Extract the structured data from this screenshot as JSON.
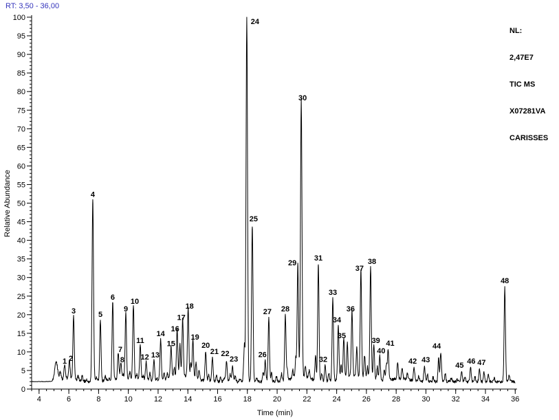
{
  "header": {
    "rt_range": "RT: 3,50 - 36,00",
    "color": "#3333bb"
  },
  "legend": {
    "lines": [
      "NL:",
      "2,47E7",
      "TIC MS",
      "X07281VA",
      "CARISSES"
    ]
  },
  "chart_data": {
    "type": "line",
    "title": "",
    "xlabel": "Time (min)",
    "ylabel": "Relative Abundance",
    "xlim": [
      3.5,
      36.0
    ],
    "ylim": [
      0,
      100
    ],
    "grid": false,
    "trace_color": "#000000",
    "axis_color": "#000000",
    "x_ticks": [
      4,
      6,
      8,
      10,
      12,
      14,
      16,
      18,
      20,
      22,
      24,
      26,
      28,
      30,
      32,
      34,
      36
    ],
    "x_minor_step": 0.5,
    "y_ticks": [
      0,
      5,
      10,
      15,
      20,
      25,
      30,
      35,
      40,
      45,
      50,
      55,
      60,
      65,
      70,
      75,
      80,
      85,
      90,
      95,
      100
    ],
    "y_minor_step": 1,
    "baseline": 2.0,
    "peaks": [
      {
        "n": 1,
        "t": 5.72,
        "a": 5.7
      },
      {
        "n": 2,
        "t": 6.04,
        "a": 6.5,
        "dx": 2
      },
      {
        "n": 3,
        "t": 6.32,
        "a": 19.2
      },
      {
        "n": 4,
        "t": 7.61,
        "a": 50.6,
        "w": 0.05
      },
      {
        "n": 5,
        "t": 8.12,
        "a": 18.3
      },
      {
        "n": 6,
        "t": 8.95,
        "a": 22.9
      },
      {
        "n": 7,
        "t": 9.32,
        "a": 8.9,
        "dx": 3
      },
      {
        "n": 8,
        "t": 9.5,
        "a": 6.1,
        "dx": 2
      },
      {
        "n": 9,
        "t": 9.83,
        "a": 19.8
      },
      {
        "n": 10,
        "t": 10.34,
        "a": 21.8,
        "dx": 2
      },
      {
        "n": 11,
        "t": 10.8,
        "a": 11.3
      },
      {
        "n": 12,
        "t": 11.2,
        "a": 6.8,
        "dx": -2
      },
      {
        "n": 13,
        "t": 11.72,
        "a": 7.4,
        "dx": 2
      },
      {
        "n": 14,
        "t": 12.17,
        "a": 13.1
      },
      {
        "n": 15,
        "t": 12.87,
        "a": 10.4
      },
      {
        "n": 16,
        "t": 13.28,
        "a": 14.4,
        "dx": -3
      },
      {
        "n": 17,
        "t": 13.65,
        "a": 17.5,
        "dx": -2
      },
      {
        "n": 18,
        "t": 14.02,
        "a": 20.5,
        "dx": 2
      },
      {
        "n": 19,
        "t": 14.34,
        "a": 12.2,
        "dx": 3
      },
      {
        "n": 20,
        "t": 15.2,
        "a": 10.0
      },
      {
        "n": 21,
        "t": 15.65,
        "a": 8.3,
        "dx": 3
      },
      {
        "n": 22,
        "t": 16.6,
        "a": 7.8,
        "dx": -2
      },
      {
        "n": 23,
        "t": 17.0,
        "a": 6.3,
        "dx": 2
      },
      {
        "n": 24,
        "t": 17.96,
        "a": 100.0,
        "w": 0.05,
        "dx": 12,
        "dy": 16
      },
      {
        "n": 25,
        "t": 18.33,
        "a": 44.0,
        "w": 0.048,
        "dx": 2
      },
      {
        "n": 26,
        "t": 19.2,
        "a": 7.5,
        "dx": -4
      },
      {
        "n": 27,
        "t": 19.44,
        "a": 19.0,
        "dx": -2
      },
      {
        "n": 28,
        "t": 20.55,
        "a": 19.8
      },
      {
        "n": 29,
        "t": 21.39,
        "a": 32.2,
        "dx": -8
      },
      {
        "n": 30,
        "t": 21.62,
        "a": 76.5,
        "w": 0.05,
        "dx": 2
      },
      {
        "n": 31,
        "t": 22.77,
        "a": 33.5
      },
      {
        "n": 32,
        "t": 23.23,
        "a": 6.2,
        "dx": -3
      },
      {
        "n": 33,
        "t": 23.74,
        "a": 24.2
      },
      {
        "n": 34,
        "t": 24.11,
        "a": 16.8,
        "dx": -2
      },
      {
        "n": 35,
        "t": 24.48,
        "a": 12.6,
        "dx": -3
      },
      {
        "n": 36,
        "t": 25.03,
        "a": 19.8,
        "dx": -2
      },
      {
        "n": 37,
        "t": 25.63,
        "a": 30.7,
        "dx": -2
      },
      {
        "n": 38,
        "t": 26.28,
        "a": 32.5,
        "dx": 2
      },
      {
        "n": 39,
        "t": 26.5,
        "a": 11.3,
        "dx": 3
      },
      {
        "n": 40,
        "t": 26.9,
        "a": 8.5,
        "dx": 2
      },
      {
        "n": 41,
        "t": 27.46,
        "a": 10.5,
        "dx": 3
      },
      {
        "n": 42,
        "t": 29.2,
        "a": 5.7,
        "dx": -2
      },
      {
        "n": 43,
        "t": 29.9,
        "a": 6.1,
        "dx": 2
      },
      {
        "n": 44,
        "t": 31.0,
        "a": 9.8,
        "dx": -6
      },
      {
        "n": 45,
        "t": 32.4,
        "a": 4.6,
        "dx": -3
      },
      {
        "n": 46,
        "t": 33.0,
        "a": 5.7,
        "dx": 1
      },
      {
        "n": 47,
        "t": 33.6,
        "a": 5.4,
        "dx": 3
      },
      {
        "n": 48,
        "t": 35.3,
        "a": 27.4
      }
    ],
    "minor_peaks": [
      [
        5.15,
        7.0,
        0.1
      ],
      [
        5.42,
        4.0,
        0.05
      ],
      [
        6.62,
        3.0
      ],
      [
        6.9,
        3.4
      ],
      [
        7.2,
        2.6
      ],
      [
        7.85,
        3.2
      ],
      [
        8.45,
        3.2
      ],
      [
        8.7,
        2.5
      ],
      [
        9.65,
        3.0
      ],
      [
        10.1,
        3.6
      ],
      [
        10.57,
        3.0
      ],
      [
        11.0,
        3.0
      ],
      [
        11.45,
        4.0
      ],
      [
        11.92,
        2.8
      ],
      [
        12.4,
        4.0
      ],
      [
        12.62,
        3.4
      ],
      [
        13.08,
        4.6
      ],
      [
        13.47,
        10.5
      ],
      [
        14.2,
        5.5
      ],
      [
        14.55,
        6.5
      ],
      [
        14.76,
        4.5
      ],
      [
        15.4,
        3.6
      ],
      [
        15.92,
        3.8
      ],
      [
        16.2,
        3.0
      ],
      [
        16.45,
        3.0
      ],
      [
        16.85,
        4.0
      ],
      [
        17.18,
        3.6
      ],
      [
        17.5,
        2.8
      ],
      [
        17.74,
        5.5,
        0.03
      ],
      [
        17.8,
        11.5,
        0.03
      ],
      [
        18.62,
        3.0
      ],
      [
        19.06,
        4.5
      ],
      [
        19.62,
        4.2
      ],
      [
        19.95,
        3.4
      ],
      [
        20.3,
        4.0
      ],
      [
        20.68,
        4.6
      ],
      [
        21.05,
        4.2
      ],
      [
        21.25,
        7.2
      ],
      [
        21.9,
        5.2
      ],
      [
        22.15,
        4.2
      ],
      [
        22.58,
        8.8
      ],
      [
        23.0,
        4.0
      ],
      [
        23.48,
        4.0
      ],
      [
        24.3,
        5.5
      ],
      [
        24.72,
        11.2
      ],
      [
        25.35,
        9.8
      ],
      [
        25.88,
        8.0
      ],
      [
        26.07,
        5.0
      ],
      [
        26.73,
        5.5
      ],
      [
        27.2,
        4.8
      ],
      [
        27.34,
        6.2
      ],
      [
        28.1,
        6.2
      ],
      [
        28.4,
        5.0
      ],
      [
        28.75,
        3.6
      ],
      [
        29.52,
        3.4
      ],
      [
        30.1,
        4.0
      ],
      [
        30.48,
        3.2
      ],
      [
        30.85,
        8.2
      ],
      [
        31.3,
        4.2
      ],
      [
        31.7,
        3.0
      ],
      [
        32.1,
        2.6
      ],
      [
        32.62,
        3.2
      ],
      [
        33.3,
        3.4
      ],
      [
        33.9,
        4.4
      ],
      [
        34.2,
        4.0
      ],
      [
        34.6,
        2.8
      ],
      [
        35.6,
        3.8
      ],
      [
        6.0,
        3.0,
        0.5
      ],
      [
        10.0,
        3.0,
        1.0
      ],
      [
        13.6,
        3.6,
        0.8
      ],
      [
        21.6,
        3.4,
        0.6
      ],
      [
        25.3,
        3.5,
        0.9
      ],
      [
        28.3,
        2.8,
        0.6
      ]
    ]
  }
}
